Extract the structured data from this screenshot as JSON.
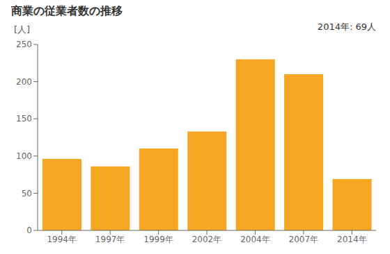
{
  "chart_data": {
    "type": "bar",
    "title": "商業の従業者数の推移",
    "ylabel": "[人]",
    "annotation": "2014年: 69人",
    "categories": [
      "1994年",
      "1997年",
      "1999年",
      "2002年",
      "2004年",
      "2007年",
      "2014年"
    ],
    "values": [
      96,
      86,
      110,
      133,
      230,
      210,
      69
    ],
    "color": "#F5A623",
    "ylim": [
      0,
      250
    ],
    "yticks": [
      0,
      50,
      100,
      150,
      200,
      250
    ],
    "grid": false
  }
}
